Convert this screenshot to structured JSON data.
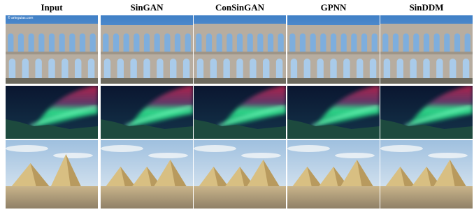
{
  "header": {
    "columns": [
      "Input",
      "SinGAN",
      "ConSinGAN",
      "GPNN",
      "SinDDM"
    ]
  },
  "images": {
    "watermark": "© arteguias.com"
  }
}
